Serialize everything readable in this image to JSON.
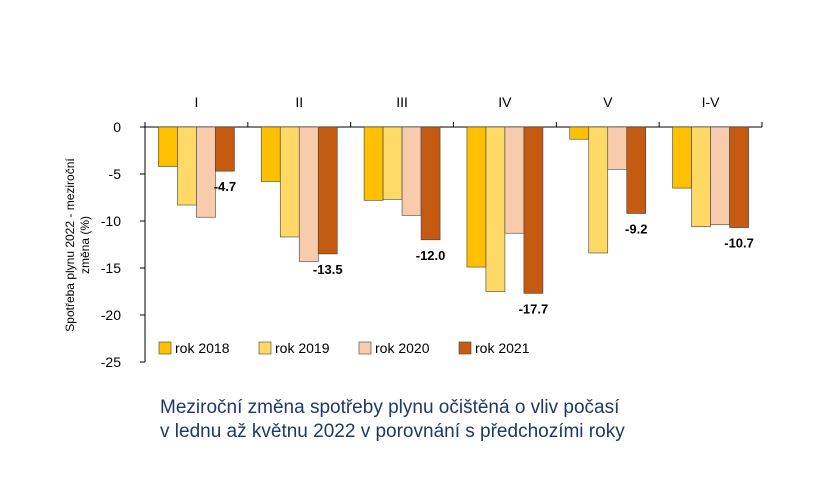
{
  "chart_data": {
    "type": "bar",
    "ylabel": "Spotřeba plynu 2022 - meziroční změna (%)",
    "ylabel_lines": [
      "Spotřeba plynu 2022 - meziroční",
      "změna (%)"
    ],
    "ylim": [
      -25,
      0
    ],
    "yticks": [
      0,
      -5,
      -10,
      -15,
      -20,
      -25
    ],
    "ytick_labels": [
      "0",
      "-5",
      "-10",
      "-15",
      "-20",
      "-25"
    ],
    "categories": [
      "I",
      "II",
      "III",
      "IV",
      "V",
      "I-V"
    ],
    "series": [
      {
        "name": "rok 2018",
        "color": "#ffc000",
        "values": [
          -4.2,
          -5.8,
          -7.8,
          -14.9,
          -1.3,
          -6.5
        ]
      },
      {
        "name": "rok 2019",
        "color": "#ffd966",
        "values": [
          -8.3,
          -11.7,
          -7.7,
          -17.5,
          -13.4,
          -10.6
        ]
      },
      {
        "name": "rok 2020",
        "color": "#f8cbad",
        "values": [
          -9.6,
          -14.3,
          -9.4,
          -11.3,
          -4.5,
          -10.4
        ]
      },
      {
        "name": "rok 2021",
        "color": "#c55a11",
        "values": [
          -4.7,
          -13.5,
          -12.0,
          -17.7,
          -9.2,
          -10.7
        ]
      }
    ],
    "data_labels": {
      "series": "rok 2021",
      "labels": [
        "-4.7",
        "-13.5",
        "-12.0",
        "-17.7",
        "-9.2",
        "-10.7"
      ]
    },
    "legend_position": "bottom-inside",
    "grid": false
  },
  "caption": {
    "line1": "Meziroční změna spotřeby plynu očištěná o vliv počasí",
    "line2": "v lednu až květnu 2022 v porovnání s předchozími roky"
  }
}
